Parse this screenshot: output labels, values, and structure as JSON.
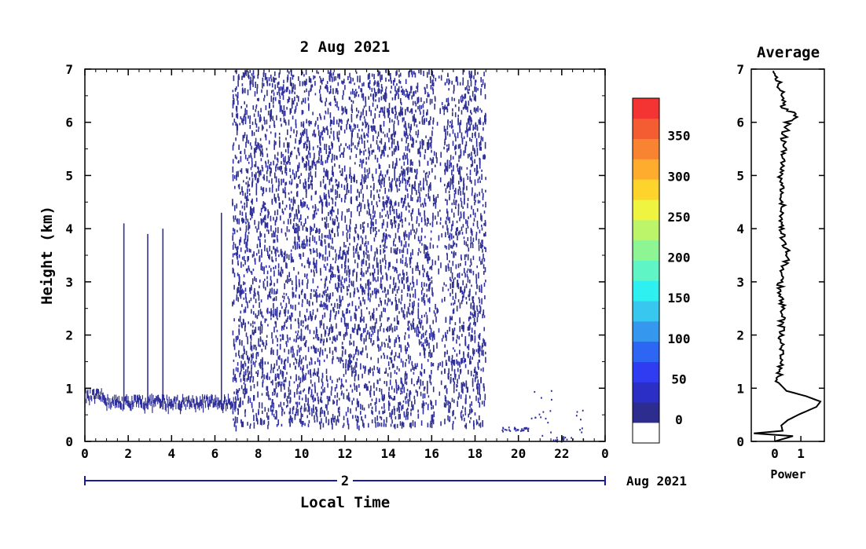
{
  "chart_data": [
    {
      "type": "heatmap",
      "title": "2 Aug 2021",
      "xlabel": "Local Time",
      "ylabel": "Height (km)",
      "xlim": [
        0,
        24
      ],
      "ylim": [
        0,
        7
      ],
      "x_ticks": [
        "0",
        "2",
        "4",
        "6",
        "8",
        "10",
        "12",
        "14",
        "16",
        "18",
        "20",
        "22",
        "0"
      ],
      "y_ticks": [
        "0",
        "1",
        "2",
        "3",
        "4",
        "5",
        "6",
        "7"
      ],
      "date_bar": {
        "day": "2",
        "month_label": "Aug 2021"
      },
      "colorbar": {
        "labels": [
          "0",
          "50",
          "100",
          "150",
          "200",
          "250",
          "300",
          "350"
        ],
        "colors": [
          "#ffffff",
          "#2d2d8f",
          "#2b2fc6",
          "#2f3cf2",
          "#2c66f3",
          "#3598ee",
          "#38c7ef",
          "#2ff0f0",
          "#5ff5c4",
          "#8ef595",
          "#bdf56a",
          "#eef43f",
          "#fcd42c",
          "#fdac2e",
          "#f88330",
          "#f45c31",
          "#f43333"
        ]
      },
      "regions": [
        {
          "name": "surface layer",
          "x_range": [
            0,
            7
          ],
          "top_km": [
            0.7,
            0.9
          ],
          "value": 0
        },
        {
          "name": "scattered echoes",
          "x_range": [
            6.8,
            18.5
          ],
          "height_range": [
            0.3,
            7
          ],
          "value": 0
        },
        {
          "name": "isolated echoes",
          "x_range": [
            19.2,
            23
          ],
          "height_range": [
            0,
            1.0
          ],
          "value": 0
        }
      ],
      "vertical_streaks": [
        {
          "time_h": 1.8,
          "top_km": 4.1
        },
        {
          "time_h": 2.9,
          "top_km": 3.9
        },
        {
          "time_h": 3.6,
          "top_km": 4.0
        },
        {
          "time_h": 6.3,
          "top_km": 4.3
        }
      ]
    },
    {
      "type": "line",
      "title": "Average",
      "xlabel": "Power",
      "ylim": [
        0,
        7
      ],
      "xlim": [
        -0.9,
        1.9
      ],
      "x_ticks": [
        "0",
        "1"
      ],
      "y_ticks": [
        "0",
        "1",
        "2",
        "3",
        "4",
        "5",
        "6",
        "7"
      ],
      "profile": [
        {
          "h": 0.0,
          "p": 0.0
        },
        {
          "h": 0.1,
          "p": 0.7
        },
        {
          "h": 0.15,
          "p": -0.8
        },
        {
          "h": 0.2,
          "p": 0.3
        },
        {
          "h": 0.3,
          "p": 0.25
        },
        {
          "h": 0.4,
          "p": 0.5
        },
        {
          "h": 0.5,
          "p": 0.9
        },
        {
          "h": 0.65,
          "p": 1.6
        },
        {
          "h": 0.75,
          "p": 1.75
        },
        {
          "h": 0.85,
          "p": 1.2
        },
        {
          "h": 0.95,
          "p": 0.45
        },
        {
          "h": 1.1,
          "p": 0.15
        },
        {
          "h": 1.5,
          "p": 0.2
        },
        {
          "h": 2.0,
          "p": 0.25
        },
        {
          "h": 2.5,
          "p": 0.3
        },
        {
          "h": 3.0,
          "p": 0.2
        },
        {
          "h": 3.5,
          "p": 0.5
        },
        {
          "h": 3.8,
          "p": 0.35
        },
        {
          "h": 4.0,
          "p": 0.25
        },
        {
          "h": 4.5,
          "p": 0.3
        },
        {
          "h": 5.0,
          "p": 0.2
        },
        {
          "h": 5.3,
          "p": 0.4
        },
        {
          "h": 5.6,
          "p": 0.3
        },
        {
          "h": 6.0,
          "p": 0.5
        },
        {
          "h": 6.1,
          "p": 0.9
        },
        {
          "h": 6.3,
          "p": 0.3
        },
        {
          "h": 6.6,
          "p": 0.25
        },
        {
          "h": 7.0,
          "p": 0.0
        }
      ]
    }
  ]
}
